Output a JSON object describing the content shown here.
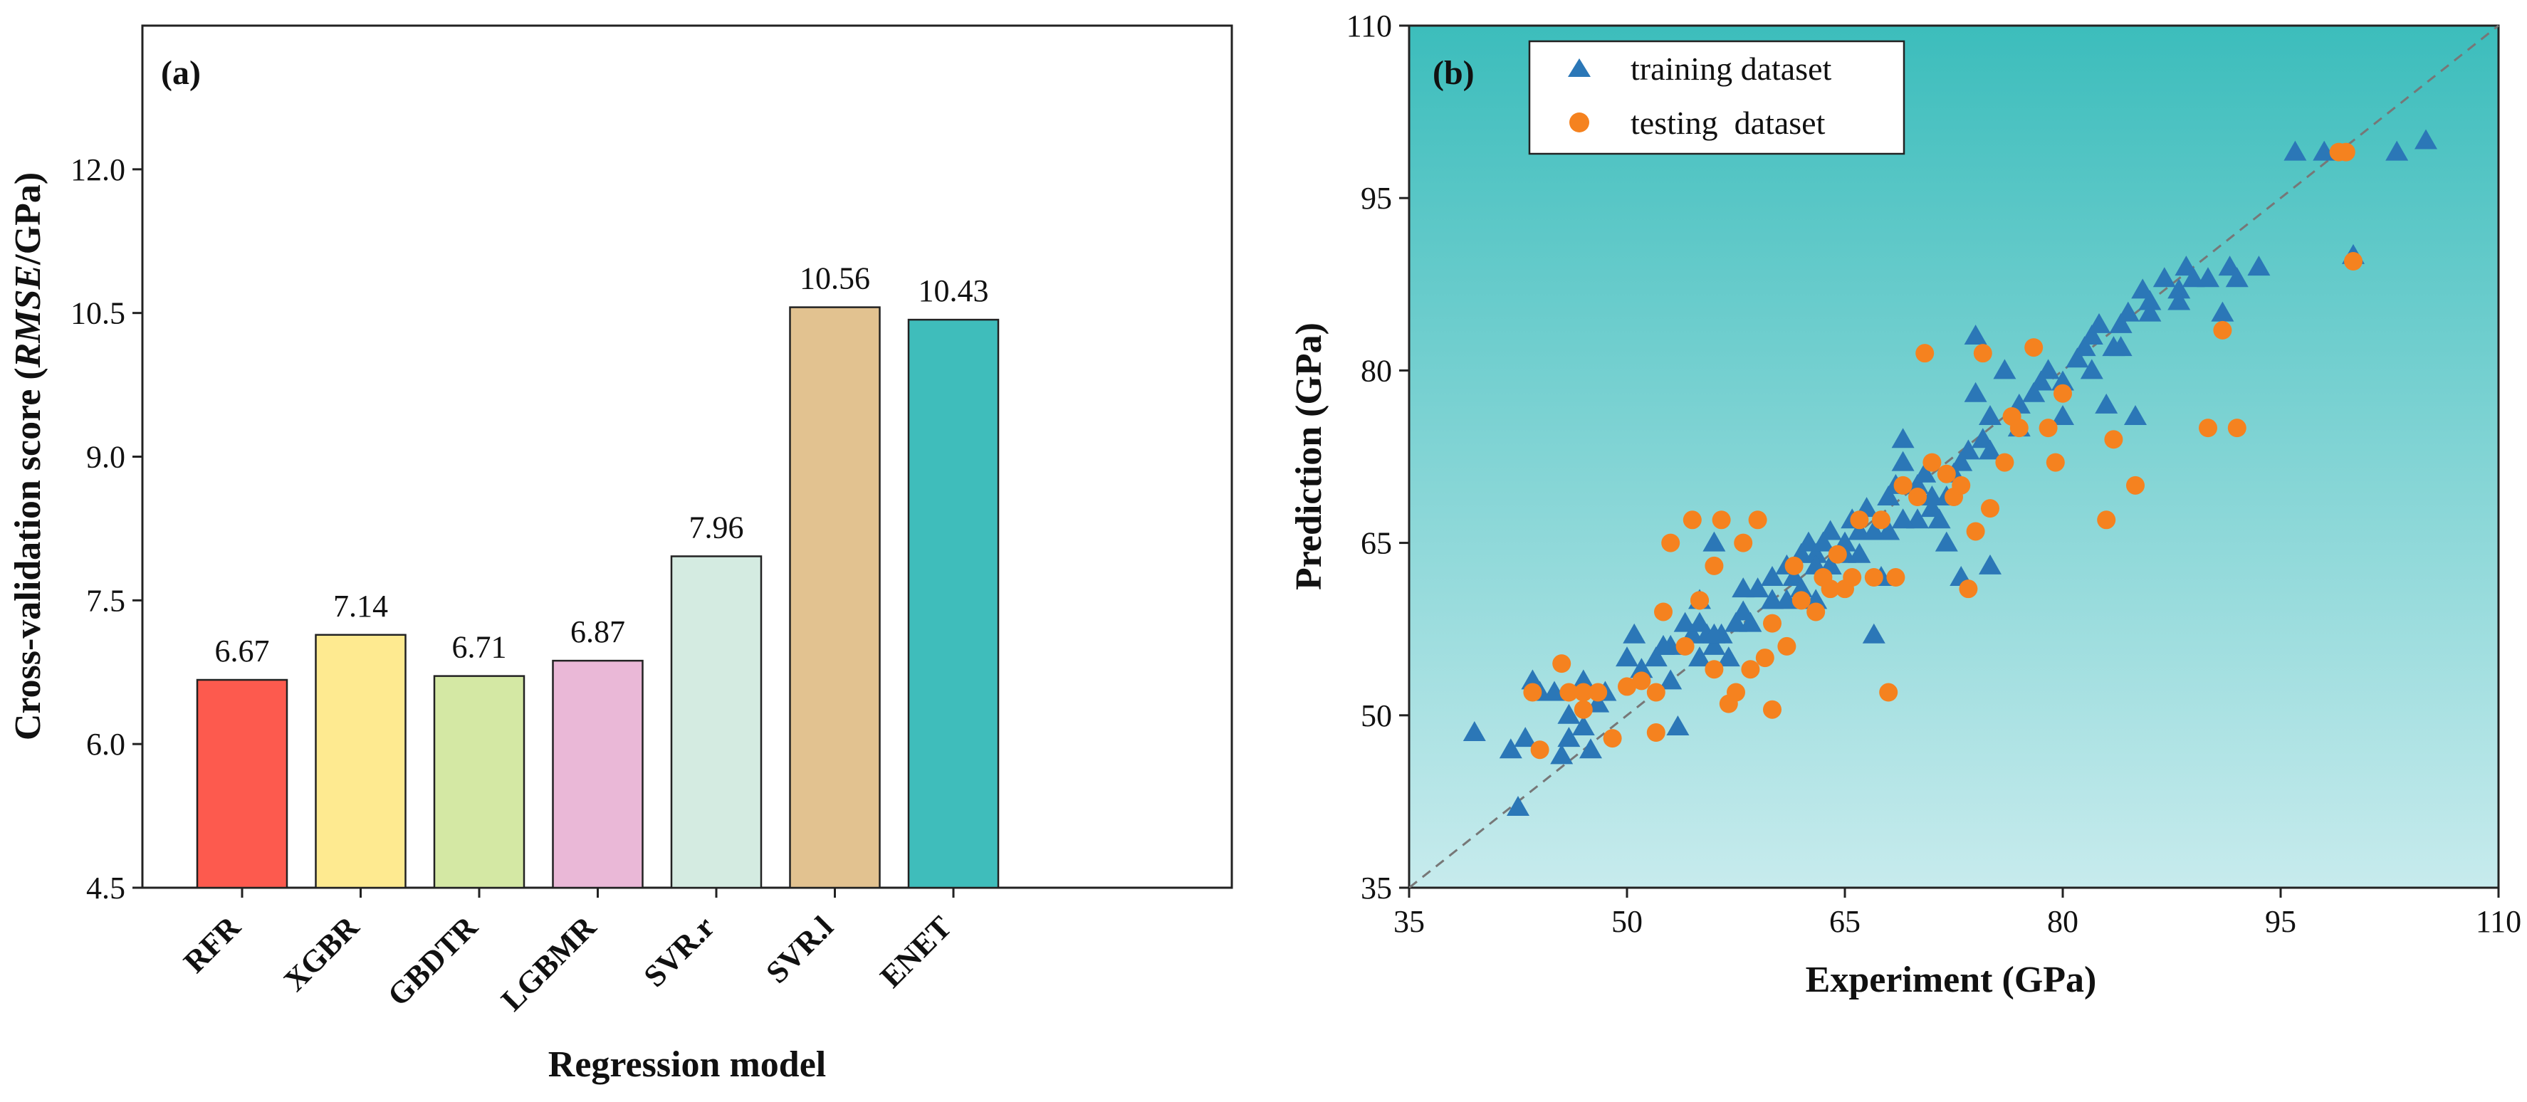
{
  "chart_data": [
    {
      "type": "bar",
      "panel_label": "(a)",
      "title": "",
      "ylabel_parts": [
        "Cross-validation score  (",
        "RMSE",
        "/GPa)"
      ],
      "xlabel": "Regression model",
      "categories": [
        "RFR",
        "XGBR",
        "GBDTR",
        "LGBMR",
        "SVR.r",
        "SVR.l",
        "ENET"
      ],
      "values": [
        6.67,
        7.14,
        6.71,
        6.87,
        7.96,
        10.56,
        10.43
      ],
      "value_labels": [
        "6.67",
        "7.14",
        "6.71",
        "6.87",
        "7.96",
        "10.56",
        "10.43"
      ],
      "colors": [
        "#fd5a4e",
        "#feea90",
        "#d4e8a4",
        "#eab8d7",
        "#d4ebe1",
        "#e2c290",
        "#3fbdbb"
      ],
      "ylim": [
        4.5,
        13.5
      ],
      "yticks": [
        4.5,
        6.0,
        7.5,
        9.0,
        10.5,
        12.0
      ],
      "ytick_labels": [
        "4.5",
        "6.0",
        "7.5",
        "9.0",
        "10.5",
        "12.0"
      ]
    },
    {
      "type": "scatter",
      "panel_label": "(b)",
      "title": "",
      "xlabel": "Experiment (GPa)",
      "ylabel": "Prediction (GPa)",
      "xlim": [
        35,
        110
      ],
      "ylim": [
        35,
        110
      ],
      "xticks": [
        35,
        50,
        65,
        80,
        95,
        110
      ],
      "xtick_labels": [
        "35",
        "50",
        "65",
        "80",
        "95",
        "110"
      ],
      "yticks": [
        35,
        50,
        65,
        80,
        95,
        110
      ],
      "ytick_labels": [
        "35",
        "50",
        "65",
        "80",
        "95",
        "110"
      ],
      "reference_line": "y = x",
      "background_gradient": [
        "#3cbdbc",
        "#c7ebed"
      ],
      "legend_position": "top-left",
      "series": [
        {
          "name": "training dataset",
          "marker": "triangle",
          "color": "#2b77b7",
          "x": [
            39.5,
            42,
            42.5,
            43,
            43.5,
            45,
            45.5,
            46,
            47,
            47.5,
            47,
            48.5,
            50,
            50.5,
            51,
            52,
            52.5,
            53,
            53.5,
            54,
            54.5,
            55,
            55.5,
            55,
            56,
            56.5,
            57,
            57.5,
            58,
            58.5,
            59,
            60,
            60,
            61,
            61.5,
            62,
            62.5,
            63,
            63.5,
            64,
            64,
            65,
            65.5,
            66,
            66.5,
            67,
            67.5,
            68,
            68.5,
            69,
            69,
            70,
            70.5,
            71,
            71.5,
            72,
            72.5,
            73,
            73.5,
            74,
            74,
            74.5,
            75,
            75,
            76,
            77,
            78,
            78.5,
            79,
            80,
            81,
            81.5,
            82,
            82.5,
            83,
            83.5,
            84,
            84.5,
            85,
            85.5,
            86,
            87,
            88,
            88.5,
            89,
            91,
            91.5,
            92,
            93.5,
            96,
            98,
            100,
            103,
            105,
            56,
            55,
            58,
            60,
            62,
            64,
            66,
            68,
            70,
            72,
            44,
            46,
            48,
            53,
            56,
            63,
            65,
            67,
            69,
            71,
            73,
            75,
            77,
            80,
            82,
            84,
            86,
            88,
            90,
            63,
            61
          ],
          "y": [
            48.5,
            47,
            42,
            48,
            53,
            52,
            46.5,
            48,
            49,
            47,
            53,
            52,
            55,
            57,
            54,
            55,
            56,
            56,
            49,
            58,
            57,
            58,
            57,
            60,
            56,
            57,
            55,
            58,
            61,
            58,
            61,
            60,
            62,
            63,
            62,
            64,
            65,
            64,
            65,
            66,
            63,
            65,
            67,
            66,
            68,
            57,
            62,
            69,
            70,
            72,
            74,
            70,
            71,
            69,
            67,
            65,
            71,
            62,
            73,
            83,
            78,
            74,
            63,
            76,
            80,
            77,
            78,
            79,
            80,
            79,
            81,
            82,
            83,
            84,
            77,
            82,
            84,
            85,
            76,
            87,
            86,
            88,
            87,
            89,
            88,
            85,
            89,
            88,
            89,
            99,
            99,
            90,
            99,
            100,
            65,
            55,
            59,
            60,
            61,
            63,
            64,
            66,
            67,
            69,
            52,
            50,
            51,
            53,
            57,
            63,
            64,
            66,
            67,
            68,
            72,
            73,
            75,
            76,
            80,
            82,
            85,
            86,
            88,
            60,
            60
          ]
        },
        {
          "name": "testing  dataset",
          "marker": "circle",
          "color": "#f5821f",
          "x": [
            44,
            45.5,
            46,
            47,
            48,
            49,
            50,
            51,
            52,
            52.5,
            53,
            54,
            54.5,
            55,
            56,
            56,
            56.5,
            57,
            57.5,
            58,
            58.5,
            59,
            59.5,
            60,
            60,
            61,
            61.5,
            62,
            63,
            63.5,
            64,
            64.5,
            65,
            65.5,
            66,
            67,
            67.5,
            68,
            68.5,
            69,
            70,
            70.5,
            71,
            72,
            72.5,
            73,
            73.5,
            74,
            74.5,
            75,
            76,
            76.5,
            77,
            78,
            79,
            79.5,
            80,
            83,
            83.5,
            85,
            90,
            91,
            92,
            99,
            99.5,
            100,
            43.5,
            47,
            52,
            55
          ],
          "y": [
            47,
            54.5,
            52,
            50.5,
            52,
            48,
            52.5,
            53,
            52,
            59,
            65,
            56,
            67,
            60,
            54,
            63,
            67,
            51,
            52,
            65,
            54,
            67,
            55,
            58,
            50.5,
            56,
            63,
            60,
            59,
            62,
            61,
            64,
            61,
            62,
            67,
            62,
            67,
            52,
            62,
            70,
            69,
            81.5,
            72,
            71,
            69,
            70,
            61,
            66,
            81.5,
            68,
            72,
            76,
            75,
            82,
            75,
            72,
            78,
            67,
            74,
            70,
            75,
            83.5,
            75,
            99,
            99,
            89.5,
            52,
            52,
            48.5,
            60
          ]
        }
      ]
    }
  ]
}
